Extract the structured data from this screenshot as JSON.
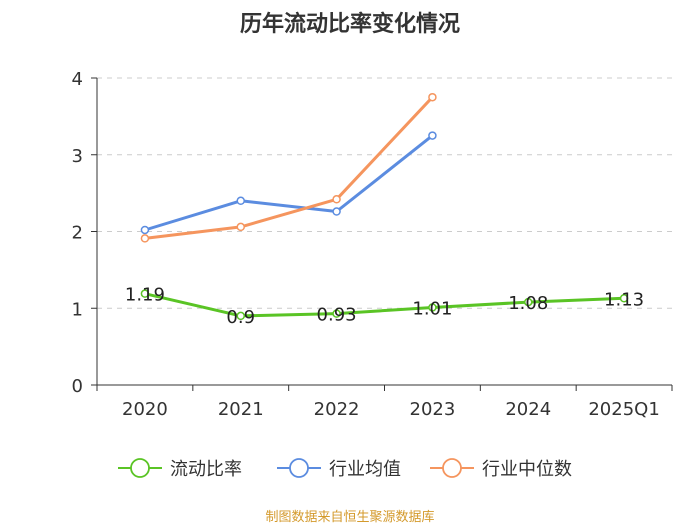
{
  "chart_data": {
    "type": "line",
    "title": "历年流动比率变化情况",
    "categories": [
      "2020",
      "2021",
      "2022",
      "2023",
      "2024",
      "2025Q1"
    ],
    "yticks": [
      "0",
      "1",
      "2",
      "3",
      "4"
    ],
    "ylim": [
      0,
      4
    ],
    "grid": true,
    "legend_position": "bottom",
    "series": [
      {
        "name": "流动比率",
        "color": "#5ac425",
        "values": [
          1.19,
          0.9,
          0.93,
          1.01,
          1.08,
          1.13
        ],
        "labels": [
          "1.19",
          "0.9",
          "0.93",
          "1.01",
          "1.08",
          "1.13"
        ]
      },
      {
        "name": "行业均值",
        "color": "#5b8ce0",
        "values": [
          2.02,
          2.4,
          2.26,
          3.25,
          null,
          null
        ]
      },
      {
        "name": "行业中位数",
        "color": "#f5955e",
        "values": [
          1.91,
          2.06,
          2.42,
          3.75,
          null,
          null
        ]
      }
    ]
  },
  "source_note": "制图数据来自恒生聚源数据库"
}
